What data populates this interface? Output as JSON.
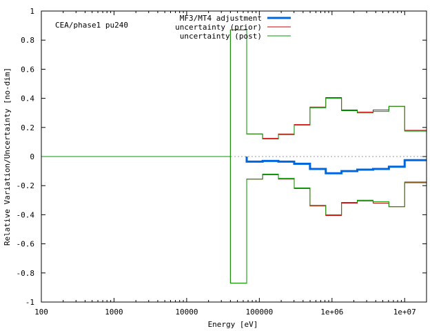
{
  "chart_data": {
    "type": "line",
    "annotation": "CEA/phase1 pu240",
    "xlabel": "Energy [eV]",
    "ylabel": "Relative Variation/Uncertainty [no-dim]",
    "xscale": "log",
    "xlim": [
      100,
      20000000
    ],
    "ylim": [
      -1,
      1
    ],
    "grid": false,
    "zero_line": "dotted-gray",
    "legend_position": "top-right",
    "x_ticks": [
      {
        "value": 100,
        "label": "100"
      },
      {
        "value": 1000,
        "label": "1000"
      },
      {
        "value": 10000,
        "label": "10000"
      },
      {
        "value": 100000,
        "label": "100000"
      },
      {
        "value": 1000000,
        "label": "1e+06"
      },
      {
        "value": 10000000,
        "label": "1e+07"
      }
    ],
    "y_ticks": [
      {
        "value": 1,
        "label": "1"
      },
      {
        "value": 0.8,
        "label": "0.8"
      },
      {
        "value": 0.6,
        "label": "0.6"
      },
      {
        "value": 0.4,
        "label": "0.4"
      },
      {
        "value": 0.2,
        "label": "0.2"
      },
      {
        "value": 0,
        "label": "0"
      },
      {
        "value": -0.2,
        "label": "-0.2"
      },
      {
        "value": -0.4,
        "label": "-0.4"
      },
      {
        "value": -0.6,
        "label": "-0.6"
      },
      {
        "value": -0.8,
        "label": "-0.8"
      },
      {
        "value": -1,
        "label": "-1"
      }
    ],
    "group_edges": [
      100,
      40000,
      67000,
      111000,
      183000,
      302000,
      498000,
      821000,
      1353000,
      2231000,
      3679000,
      6065000,
      10000000,
      20000000
    ],
    "series": [
      {
        "name": "MF3/MT4 adjustment",
        "color": "#0066dd",
        "width": 3,
        "values": [
          0,
          0,
          -0.035,
          -0.03,
          -0.035,
          -0.05,
          -0.085,
          -0.115,
          -0.1,
          -0.09,
          -0.085,
          -0.07,
          -0.025
        ]
      },
      {
        "name": "uncertainty (prior)",
        "color": "#cc0000",
        "width": 1,
        "mirrored": true,
        "values": [
          0,
          0.87,
          0.155,
          0.125,
          0.155,
          0.22,
          0.34,
          0.405,
          0.32,
          0.305,
          0.32,
          0.345,
          0.18
        ]
      },
      {
        "name": "uncertainty (post)",
        "color": "#009900",
        "width": 1,
        "mirrored": true,
        "values": [
          0,
          0.87,
          0.155,
          0.12,
          0.15,
          0.215,
          0.335,
          0.4,
          0.315,
          0.3,
          0.31,
          0.345,
          0.175
        ]
      }
    ]
  }
}
